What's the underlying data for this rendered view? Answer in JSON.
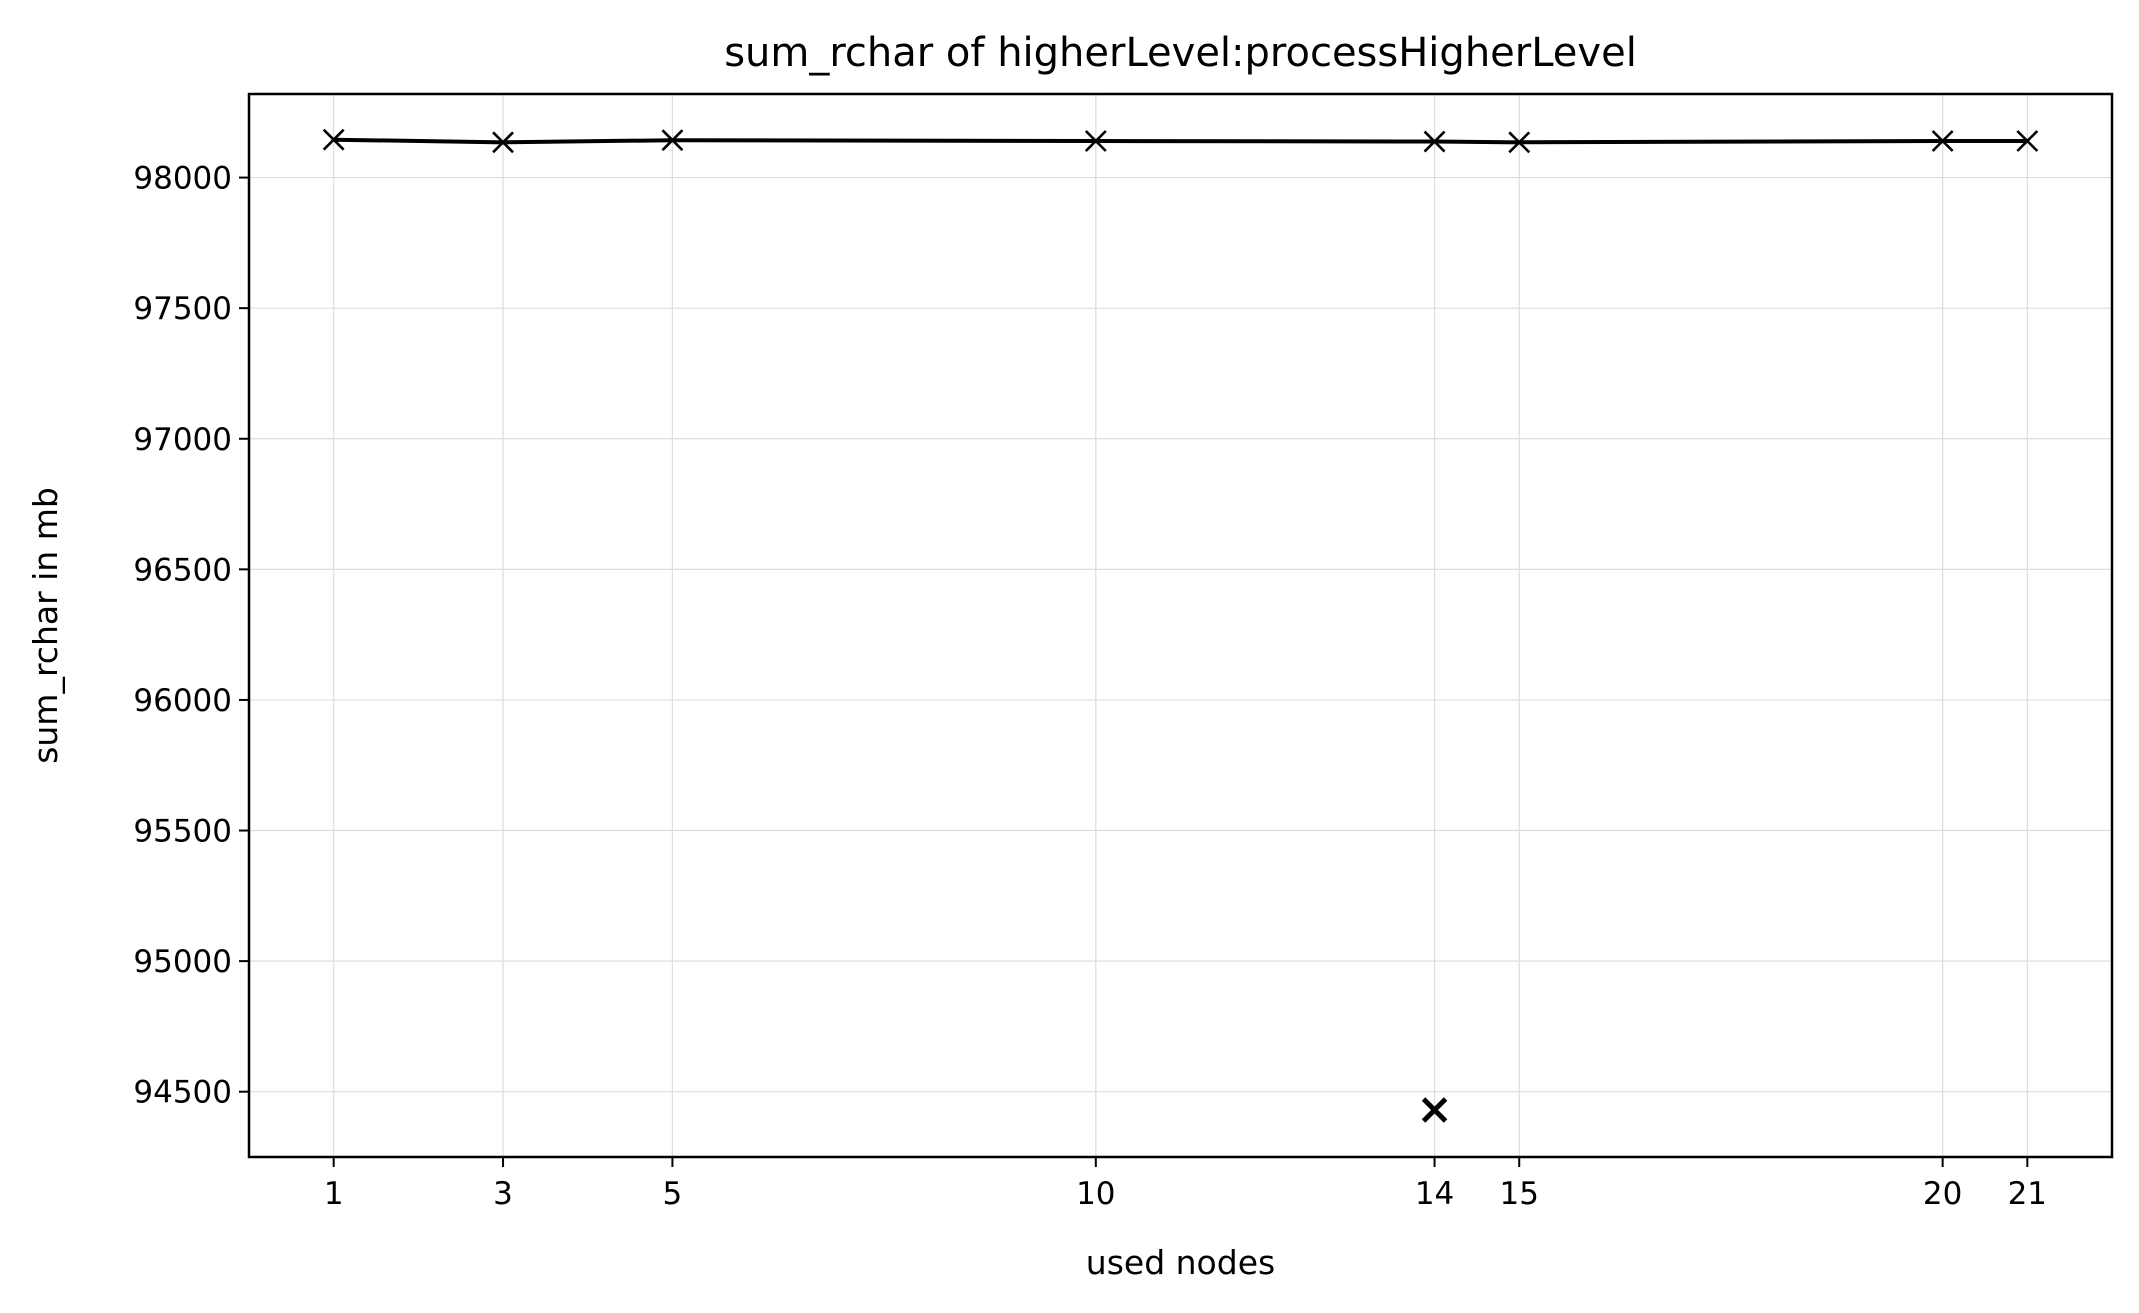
{
  "chart_data": {
    "type": "line",
    "title": "sum_rchar of higherLevel:processHigherLevel",
    "xlabel": "used nodes",
    "ylabel": "sum_rchar in mb",
    "xlim": [
      0,
      22
    ],
    "ylim": [
      94250,
      98320
    ],
    "xticks": [
      1,
      3,
      5,
      10,
      14,
      15,
      20,
      21
    ],
    "yticks": [
      94500,
      95000,
      95500,
      96000,
      96500,
      97000,
      97500,
      98000
    ],
    "grid": true,
    "series": [
      {
        "x": [
          1,
          3,
          5,
          10,
          14,
          15,
          20,
          21
        ],
        "y": [
          98145,
          98135,
          98143,
          98140,
          98138,
          98135,
          98140,
          98140
        ],
        "marker": "x",
        "line": true,
        "color": "#000000"
      },
      {
        "x": [
          14
        ],
        "y": [
          94430
        ],
        "marker": "x",
        "line": false,
        "bold": true,
        "color": "#000000"
      }
    ]
  }
}
